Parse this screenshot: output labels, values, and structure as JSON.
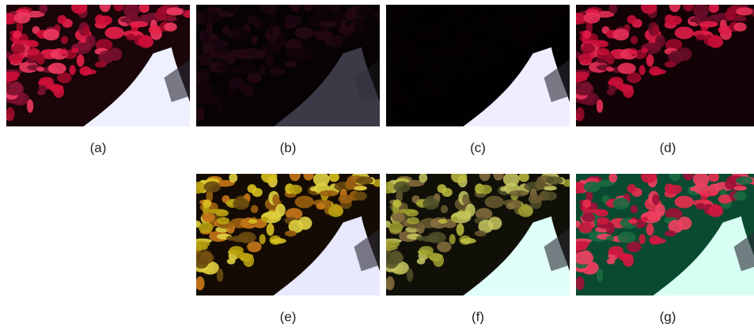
{
  "panels": [
    {
      "label": "(a)"
    },
    {
      "label": "(b)"
    },
    {
      "label": "(c)"
    },
    {
      "label": "(d)"
    },
    {
      "label": "(e)"
    },
    {
      "label": "(f)"
    },
    {
      "label": "(g)"
    }
  ]
}
